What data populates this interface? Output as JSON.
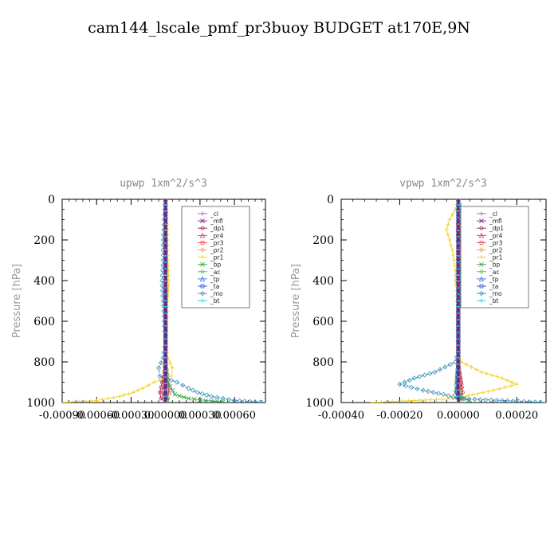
{
  "figure_title": "cam144_lscale_pmf_pr3buoy  BUDGET at170E,9N",
  "chart_data": [
    {
      "type": "line",
      "title": "upwp   1xm^2/s^3",
      "ylabel": "Pressure [hPa]",
      "xlabel": "",
      "xlim": [
        -0.0009,
        0.00087
      ],
      "ylim": [
        1000,
        0
      ],
      "xticks": [
        -0.0009,
        -0.0006,
        -0.0003,
        0.0,
        0.0003,
        0.0006
      ],
      "xtick_labels": [
        "-0.00090",
        "-0.00060",
        "-0.00030",
        "0.00000",
        "0.00030",
        "0.00060"
      ],
      "yticks": [
        0,
        200,
        400,
        600,
        800,
        1000
      ],
      "ytick_labels": [
        "0",
        "200",
        "400",
        "600",
        "800",
        "1000"
      ],
      "legend_position": "top-right",
      "series": [
        {
          "name": "_cl",
          "color": "#8a56c2",
          "p": [
            0,
            500,
            1000
          ],
          "x": [
            0.0,
            0.0,
            0.0
          ]
        },
        {
          "name": "_mfl",
          "color": "#7a1a7a",
          "p": [
            0,
            500,
            1000
          ],
          "x": [
            0.0,
            0.0,
            0.0
          ]
        },
        {
          "name": "_dp1",
          "color": "#a01040",
          "p": [
            0,
            100,
            200,
            300,
            400,
            500,
            600,
            700,
            800,
            850,
            900,
            950,
            980,
            1000
          ],
          "x": [
            0.0,
            0.0,
            0.0,
            0.0,
            0.0,
            0.0,
            0.0,
            0.0,
            0.0,
            -1e-05,
            -3e-05,
            -5e-05,
            -4e-05,
            0.0
          ]
        },
        {
          "name": "_pr4",
          "color": "#d0306a",
          "p": [
            0,
            200,
            400,
            600,
            800,
            900,
            950,
            1000
          ],
          "x": [
            0.0,
            0.0,
            0.0,
            0.0,
            0.0,
            2e-05,
            3e-05,
            0.0
          ]
        },
        {
          "name": "_pr3",
          "color": "#e04040",
          "p": [
            0,
            200,
            400,
            600,
            800,
            900,
            950,
            1000
          ],
          "x": [
            0.0,
            0.0,
            0.0,
            0.0,
            0.0,
            -2e-05,
            -3e-05,
            0.0
          ]
        },
        {
          "name": "_pr2",
          "color": "#f0a030",
          "p": [
            0,
            400,
            800,
            900,
            1000
          ],
          "x": [
            0.0,
            0.0,
            0.0,
            1e-05,
            0.0
          ]
        },
        {
          "name": "_pr1",
          "color": "#f0d020",
          "p": [
            0,
            100,
            200,
            300,
            400,
            500,
            600,
            700,
            780,
            830,
            870,
            900,
            930,
            950,
            970,
            990,
            1000
          ],
          "x": [
            0.0,
            1e-05,
            2e-05,
            2e-05,
            3e-05,
            2e-05,
            1e-05,
            0.0,
            2e-05,
            6e-05,
            5e-05,
            -0.0001,
            -0.0002,
            -0.00028,
            -0.0004,
            -0.0006,
            -0.0009
          ]
        },
        {
          "name": "_bp",
          "color": "#30a040",
          "p": [
            0,
            800,
            900,
            960,
            980,
            990,
            1000
          ],
          "x": [
            0.0,
            0.0,
            2e-05,
            8e-05,
            0.0002,
            0.00035,
            0.00055
          ]
        },
        {
          "name": "_ac",
          "color": "#40c040",
          "p": [
            0,
            800,
            950,
            1000
          ],
          "x": [
            0.0,
            0.0,
            1e-05,
            3e-05
          ]
        },
        {
          "name": "_tp",
          "color": "#3070e0",
          "p": [
            0,
            800,
            950,
            1000
          ],
          "x": [
            0.0,
            0.0,
            -1e-05,
            2e-05
          ]
        },
        {
          "name": "_ta",
          "color": "#3040c0",
          "p": [
            0,
            800,
            950,
            1000
          ],
          "x": [
            0.0,
            0.0,
            0.0,
            -1e-05
          ]
        },
        {
          "name": "_mo",
          "color": "#2a8ab8",
          "p": [
            0,
            100,
            200,
            300,
            400,
            500,
            600,
            700,
            780,
            830,
            870,
            900,
            930,
            950,
            970,
            990,
            1000
          ],
          "x": [
            0.0,
            -1e-05,
            -2e-05,
            -2e-05,
            -3e-05,
            -2e-05,
            -1e-05,
            0.0,
            -2e-05,
            -6e-05,
            -5e-05,
            0.0001,
            0.0002,
            0.00028,
            0.0004,
            0.0006,
            0.00087
          ]
        },
        {
          "name": "_bt",
          "color": "#20d0d0",
          "p": [
            0,
            500,
            1000
          ],
          "x": [
            0.0,
            0.0,
            0.0
          ]
        }
      ]
    },
    {
      "type": "line",
      "title": "vpwp   1xm^2/s^3",
      "ylabel": "Pressure [hPa]",
      "xlabel": "",
      "xlim": [
        -0.0004,
        0.0003
      ],
      "ylim": [
        1000,
        0
      ],
      "xticks": [
        -0.0004,
        -0.0002,
        0.0,
        0.0002
      ],
      "xtick_labels": [
        "-0.00040",
        "-0.00020",
        "0.00000",
        "0.00020"
      ],
      "yticks": [
        0,
        200,
        400,
        600,
        800,
        1000
      ],
      "ytick_labels": [
        "0",
        "200",
        "400",
        "600",
        "800",
        "1000"
      ],
      "legend_position": "top-right",
      "series": [
        {
          "name": "_cl",
          "color": "#8a56c2",
          "p": [
            0,
            500,
            1000
          ],
          "x": [
            0.0,
            0.0,
            0.0
          ]
        },
        {
          "name": "_mfl",
          "color": "#7a1a7a",
          "p": [
            0,
            500,
            1000
          ],
          "x": [
            0.0,
            0.0,
            0.0
          ]
        },
        {
          "name": "_dp1",
          "color": "#a01040",
          "p": [
            0,
            200,
            400,
            600,
            800,
            850,
            900,
            950,
            980,
            1000
          ],
          "x": [
            0.0,
            0.0,
            0.0,
            0.0,
            0.0,
            5e-06,
            1e-05,
            1.5e-05,
            1e-05,
            0.0
          ]
        },
        {
          "name": "_pr4",
          "color": "#d0306a",
          "p": [
            0,
            200,
            400,
            600,
            800,
            900,
            950,
            1000
          ],
          "x": [
            0.0,
            0.0,
            0.0,
            0.0,
            0.0,
            1e-05,
            5e-06,
            0.0
          ]
        },
        {
          "name": "_pr3",
          "color": "#e04040",
          "p": [
            0,
            200,
            400,
            600,
            800,
            900,
            950,
            1000
          ],
          "x": [
            0.0,
            0.0,
            0.0,
            0.0,
            0.0,
            -5e-06,
            5e-06,
            0.0
          ]
        },
        {
          "name": "_pr2",
          "color": "#f0a030",
          "p": [
            0,
            400,
            800,
            900,
            1000
          ],
          "x": [
            0.0,
            0.0,
            0.0,
            5e-06,
            0.0
          ]
        },
        {
          "name": "_pr1",
          "color": "#f0d020",
          "p": [
            0,
            50,
            100,
            150,
            200,
            250,
            300,
            350,
            400,
            450,
            500,
            550,
            600,
            650,
            700,
            750,
            800,
            850,
            880,
            910,
            940,
            960,
            980,
            1000
          ],
          "x": [
            0.0,
            -1e-05,
            -3e-05,
            -4e-05,
            -3e-05,
            -2e-05,
            -1.5e-05,
            -1e-05,
            -1e-05,
            -5e-06,
            -5e-06,
            0.0,
            0.0,
            0.0,
            0.0,
            0.0,
            1e-05,
            8e-05,
            0.00015,
            0.0002,
            0.00012,
            5e-05,
            0.0,
            -0.0003
          ]
        },
        {
          "name": "_bp",
          "color": "#30a040",
          "p": [
            0,
            800,
            900,
            950,
            980,
            1000
          ],
          "x": [
            0.0,
            0.0,
            -5e-06,
            -1e-05,
            2e-05,
            5e-05
          ]
        },
        {
          "name": "_ac",
          "color": "#40c040",
          "p": [
            0,
            800,
            900,
            950,
            1000
          ],
          "x": [
            0.0,
            0.0,
            -5e-06,
            5e-06,
            1e-05
          ]
        },
        {
          "name": "_tp",
          "color": "#3070e0",
          "p": [
            0,
            800,
            900,
            950,
            1000
          ],
          "x": [
            0.0,
            0.0,
            -5e-06,
            0.0,
            5e-06
          ]
        },
        {
          "name": "_ta",
          "color": "#3040c0",
          "p": [
            0,
            800,
            900,
            950,
            1000
          ],
          "x": [
            0.0,
            0.0,
            0.0,
            -5e-06,
            0.0
          ]
        },
        {
          "name": "_mo",
          "color": "#2a8ab8",
          "p": [
            0,
            50,
            100,
            150,
            200,
            250,
            300,
            350,
            400,
            450,
            500,
            550,
            600,
            650,
            700,
            750,
            800,
            850,
            880,
            910,
            940,
            960,
            980,
            1000
          ],
          "x": [
            0.0,
            1e-05,
            3e-05,
            4e-05,
            3e-05,
            2e-05,
            1.5e-05,
            1e-05,
            1e-05,
            5e-06,
            5e-06,
            0.0,
            0.0,
            0.0,
            0.0,
            0.0,
            -1e-05,
            -8e-05,
            -0.00015,
            -0.0002,
            -0.00012,
            -5e-05,
            0.0,
            0.0003
          ]
        },
        {
          "name": "_bt",
          "color": "#20d0d0",
          "p": [
            0,
            500,
            1000
          ],
          "x": [
            0.0,
            0.0,
            0.0
          ]
        }
      ]
    }
  ]
}
